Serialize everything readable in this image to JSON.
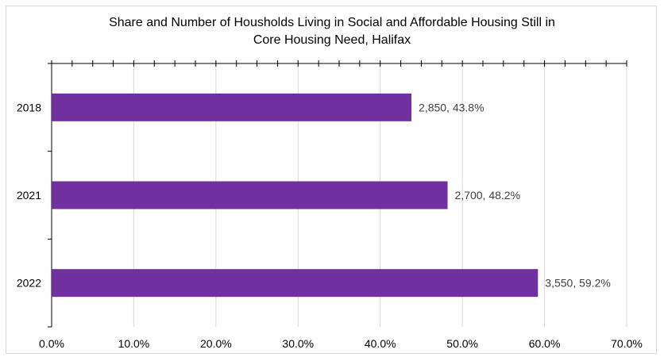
{
  "chart_data": {
    "type": "bar",
    "orientation": "horizontal",
    "title_lines": [
      "Share and Number of Housholds Living in Social and Affordable Housing Still in",
      "Core Housing Need, Halifax"
    ],
    "categories": [
      "2018",
      "2021",
      "2022"
    ],
    "series": [
      {
        "values": [
          43.8,
          48.2,
          59.2
        ],
        "counts": [
          2850,
          2700,
          3550
        ],
        "data_labels": [
          "2,850, 43.8%",
          "2,700, 48.2%",
          "3,550, 59.2%"
        ],
        "color": "#7030a0"
      }
    ],
    "x_ticks": [
      "0.0%",
      "10.0%",
      "20.0%",
      "30.0%",
      "40.0%",
      "50.0%",
      "60.0%",
      "70.0%"
    ],
    "xlim": [
      0,
      70
    ],
    "grid": "vertical",
    "legend": "none"
  }
}
